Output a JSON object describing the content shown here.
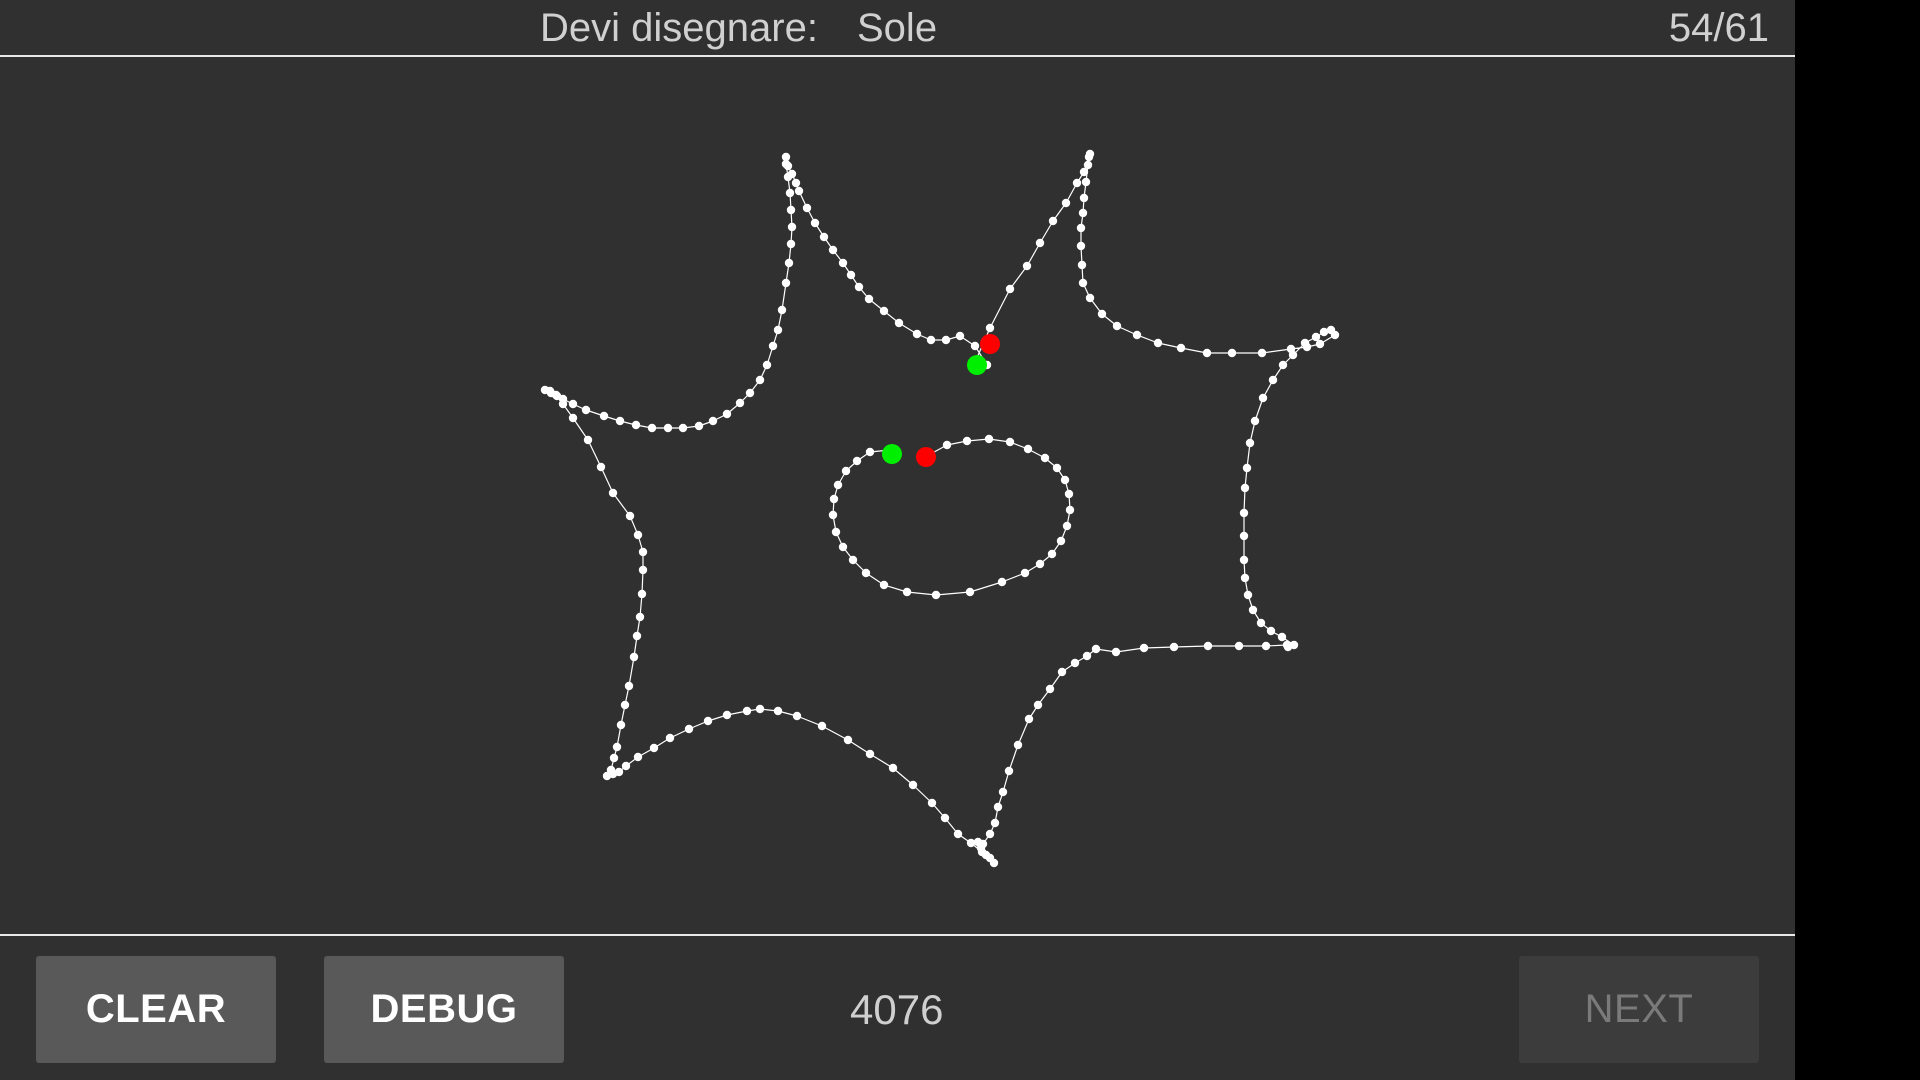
{
  "header": {
    "prompt_label": "Devi disegnare:",
    "prompt_word": "Sole",
    "progress": "54/61"
  },
  "drawing": {
    "stroke_color": "#ffffff",
    "point_color": "#ffffff",
    "start_marker_color": "#00ee00",
    "end_marker_color": "#ff0000"
  },
  "footer": {
    "clear_label": "CLEAR",
    "debug_label": "DEBUG",
    "score": "4076",
    "next_label": "NEXT"
  }
}
